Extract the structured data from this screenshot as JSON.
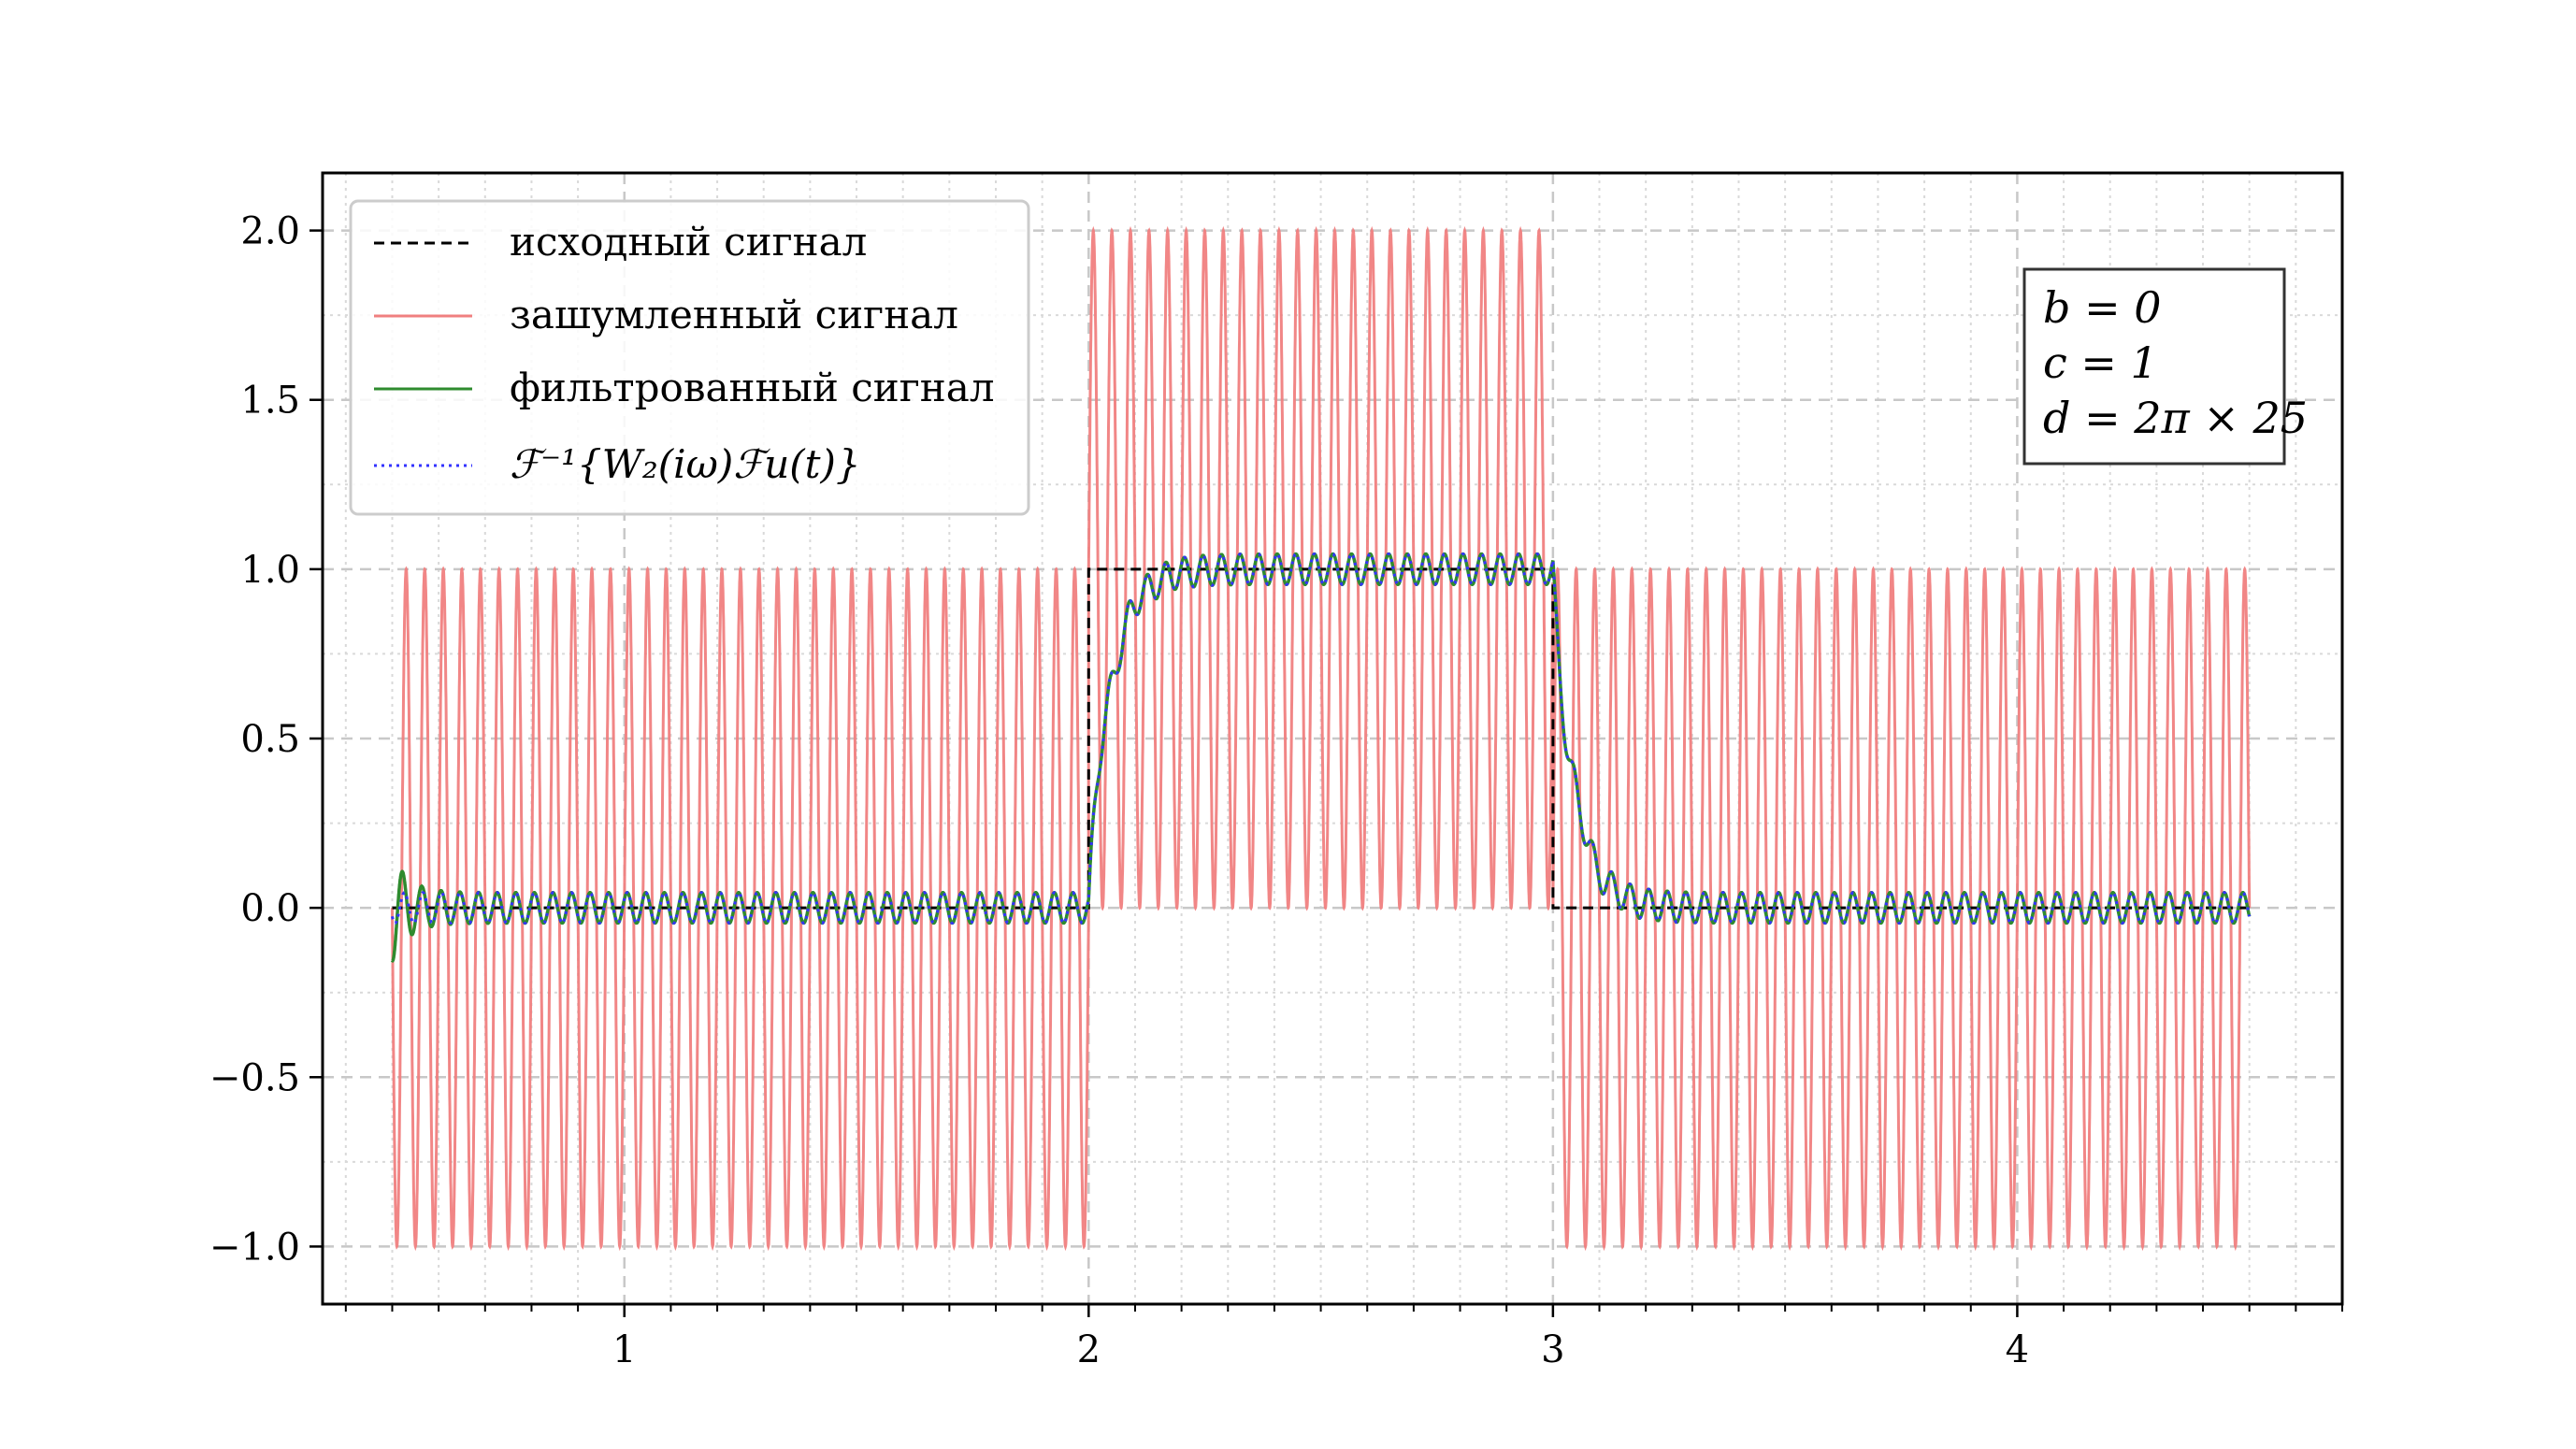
{
  "chart_data": {
    "type": "line",
    "title": "",
    "xlabel": "",
    "ylabel": "",
    "xlim": [
      0.35,
      4.7
    ],
    "ylim": [
      -1.17,
      2.17
    ],
    "xticks": [
      1,
      2,
      3,
      4
    ],
    "xtick_labels": [
      "1",
      "2",
      "3",
      "4"
    ],
    "x_minor_step": 0.1,
    "yticks": [
      -1.0,
      -0.5,
      0.0,
      0.5,
      1.0,
      1.5,
      2.0
    ],
    "ytick_labels": [
      "−1.0",
      "−0.5",
      "0.0",
      "0.5",
      "1.0",
      "1.5",
      "2.0"
    ],
    "y_minor_step": 0.25,
    "grid": true,
    "legend_position": "upper-left",
    "series": [
      {
        "name": "исходный сигнал",
        "color": "#000000",
        "style": "dashed",
        "segments": [
          {
            "x": [
              0.5,
              2.0,
              2.0,
              3.0,
              3.0,
              4.5
            ],
            "y": [
              0,
              0,
              1,
              1,
              0,
              0
            ]
          }
        ]
      },
      {
        "name": "зашумленный сигнал",
        "color": "#f08080",
        "style": "solid",
        "description": "square pulse (0 outside [2,3], 1 inside) plus sin(2π·25 t)",
        "noise_frequency": 25,
        "noise_amplitude": 1.0,
        "pulse": {
          "start": 2.0,
          "end": 3.0,
          "level": 1.0
        },
        "x_range": [
          0.5,
          4.5
        ]
      },
      {
        "name": "фильтрованный сигнал",
        "color": "#2e8b2e",
        "style": "solid",
        "description": "smoothed pulse with small residual ripple",
        "ripple_amplitude": 0.045,
        "x_range": [
          0.5,
          4.5
        ]
      },
      {
        "name": "ℱ⁻¹{W₂(iω)ℱu(t)}",
        "color": "#3333ff",
        "style": "dotted",
        "x_range": [
          0.5,
          4.5
        ]
      }
    ],
    "annotation": {
      "lines": [
        "b = 0",
        "c = 1",
        "d = 2π × 25"
      ]
    }
  },
  "legend": {
    "items": [
      {
        "label": "исходный сигнал",
        "color": "#000000",
        "style": "dashed"
      },
      {
        "label": "зашумленный сигнал",
        "color": "#f08080",
        "style": "solid"
      },
      {
        "label": "фильтрованный сигнал",
        "color": "#2e8b2e",
        "style": "solid"
      },
      {
        "label": "ℱ⁻¹{W₂(iω)ℱu(t)}",
        "color": "#3333ff",
        "style": "dotted"
      }
    ]
  }
}
